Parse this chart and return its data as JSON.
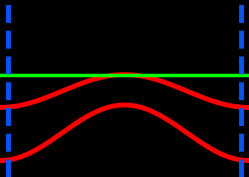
{
  "background_color": "#000000",
  "fig_width": 2.49,
  "fig_height": 1.77,
  "dpi": 100,
  "k_min": -1.0,
  "k_max": 1.0,
  "energy_min": -3.5,
  "energy_max": 3.5,
  "bz_boundary": 0.935,
  "bz_color": "#0055ff",
  "bz_linewidth": 3.5,
  "bz_linestyle": "--",
  "chemical_potential": 0.55,
  "mu_color": "#00ff00",
  "mu_linewidth": 2.5,
  "mu_linestyle": "-",
  "band_color": "#ff0000",
  "band_linewidth": 3.5,
  "t1": 1.1,
  "t2": 0.65,
  "delta": 0.55,
  "n_points": 500
}
